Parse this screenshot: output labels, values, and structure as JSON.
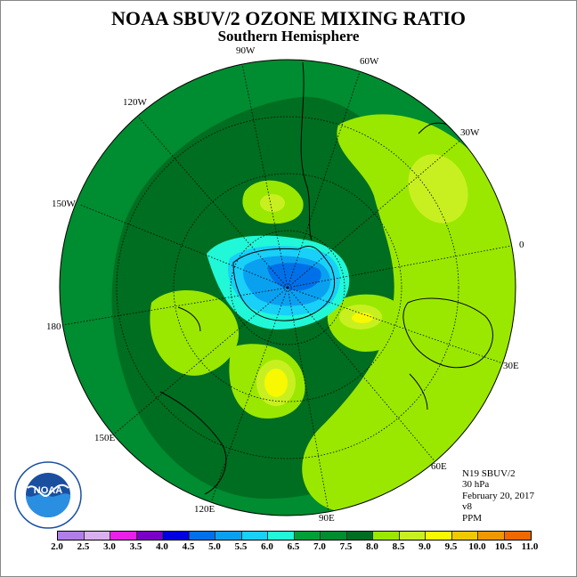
{
  "title": "NOAA SBUV/2 OZONE MIXING RATIO",
  "subtitle": "Southern Hemisphere",
  "longitude_labels": {
    "lon_90w": "90W",
    "lon_60w": "60W",
    "lon_30w": "30W",
    "lon_0": "0",
    "lon_30e": "30E",
    "lon_60e": "60E",
    "lon_90e": "90E",
    "lon_120e": "120E",
    "lon_150e": "150E",
    "lon_180": "180",
    "lon_150w": "150W",
    "lon_120w": "120W"
  },
  "info": {
    "satellite": "N19 SBUV/2",
    "level": "30 hPa",
    "date": "February 20, 2017",
    "version": "v8",
    "units": "PPM"
  },
  "logo_text": "NOAA",
  "colorbar": {
    "ticks": [
      "2.0",
      "2.5",
      "3.0",
      "3.5",
      "4.0",
      "4.5",
      "5.0",
      "5.5",
      "6.0",
      "6.5",
      "7.0",
      "7.5",
      "8.0",
      "8.5",
      "9.0",
      "9.5",
      "10.0",
      "10.5",
      "11.0"
    ],
    "colors": [
      "#b07ee8",
      "#d8b0f0",
      "#e820e8",
      "#7a00c8",
      "#0000e0",
      "#0070e8",
      "#0aa0f0",
      "#18d0f8",
      "#20f8d8",
      "#00a038",
      "#008c30",
      "#006e20",
      "#9ae800",
      "#c8f020",
      "#f8f800",
      "#f0c800",
      "#f09800",
      "#f06800",
      "#f00000",
      "#a06040"
    ],
    "units": "PPM"
  }
}
